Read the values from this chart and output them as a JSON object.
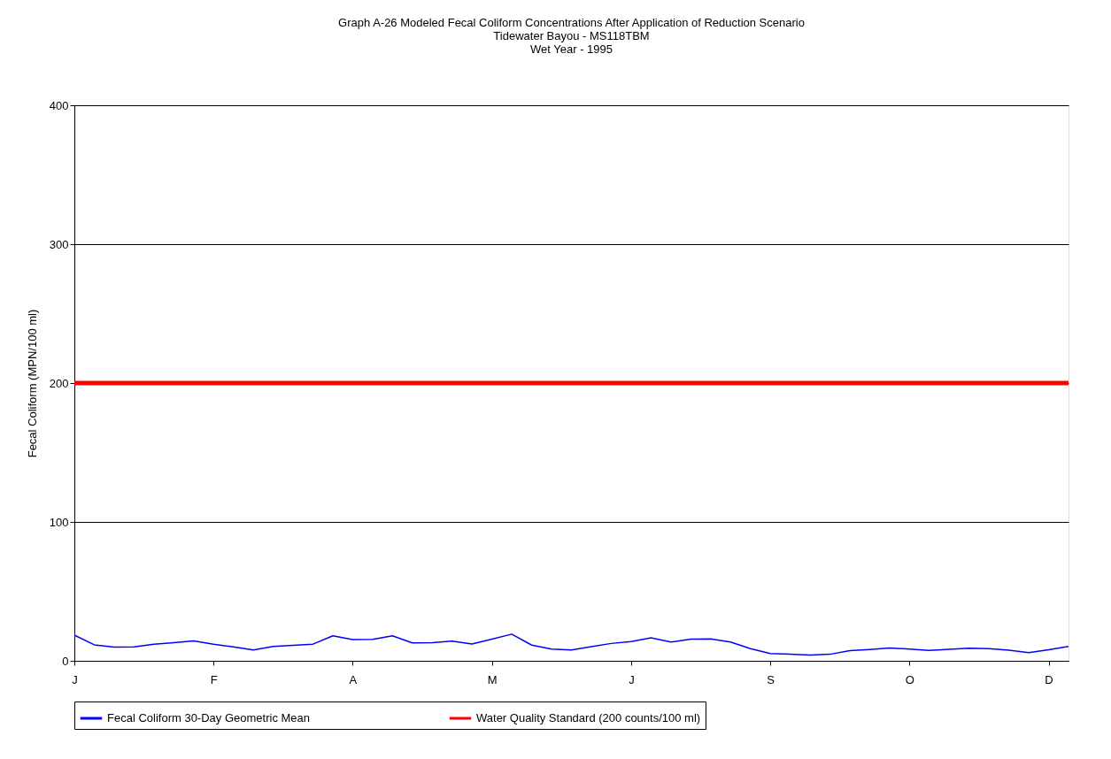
{
  "chart_data": {
    "type": "line",
    "title": "Graph A-26  Modeled Fecal Coliform Concentrations After Application of Reduction Scenario",
    "subtitle": "Tidewater Bayou - MS118TBM\nWet Year - 1995",
    "ylabel": "Fecal Coliform (MPN/100 ml)",
    "ylim": [
      0,
      400
    ],
    "yticks": [
      0,
      100,
      200,
      300,
      400
    ],
    "categories": [
      "J",
      null,
      null,
      null,
      null,
      null,
      null,
      "F",
      null,
      null,
      null,
      null,
      null,
      null,
      "A",
      null,
      null,
      null,
      null,
      null,
      null,
      "M",
      null,
      null,
      null,
      null,
      null,
      null,
      "J",
      null,
      null,
      null,
      null,
      null,
      null,
      "S",
      null,
      null,
      null,
      null,
      null,
      null,
      "O",
      null,
      null,
      null,
      null,
      null,
      null,
      "D",
      null
    ],
    "grid": "y",
    "legend": "bottom",
    "line_style": "solid",
    "marker": "none",
    "series": [
      {
        "name": "Fecal Coliform 30-Day Geometric Mean",
        "color": "#0000ff",
        "values": [
          18.5,
          11.5,
          9.8,
          10.1,
          11.9,
          13.1,
          14.4,
          12,
          10,
          7.8,
          10.3,
          11.2,
          12,
          18,
          15.3,
          15.5,
          18,
          12.9,
          13,
          14.2,
          12.1,
          15.6,
          19.2,
          11.3,
          8.5,
          7.8,
          10.2,
          12.5,
          13.9,
          16.6,
          13.5,
          15.6,
          15.8,
          13.5,
          8.8,
          5.3,
          4.7,
          4.2,
          4.7,
          7.3,
          8.1,
          9.2,
          8.5,
          7.5,
          8.3,
          9,
          8.8,
          7.7,
          5.9,
          7.9,
          10.3
        ]
      }
    ],
    "ref_lines": [
      {
        "axis": "y",
        "value": 200,
        "label": "Water Quality Standard (200 counts/100 ml)",
        "color": "#ff0000"
      }
    ]
  }
}
